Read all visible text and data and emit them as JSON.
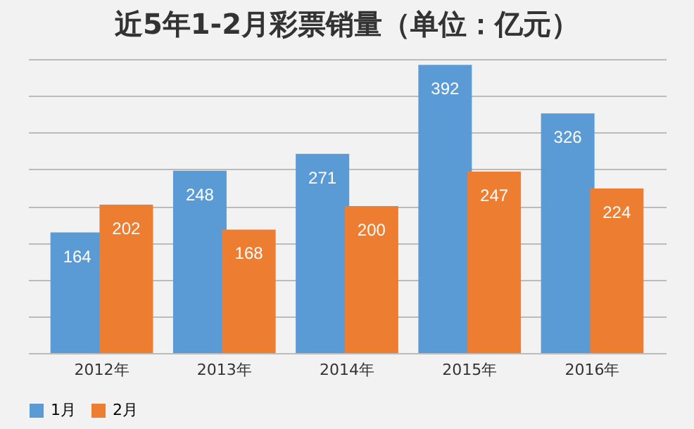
{
  "chart_data": {
    "type": "bar",
    "title": "近5年1-2月彩票销量（单位：亿元）",
    "categories": [
      "2012年",
      "2013年",
      "2014年",
      "2015年",
      "2016年"
    ],
    "series": [
      {
        "name": "1月",
        "color": "#5b9bd5",
        "values": [
          164,
          248,
          271,
          392,
          326
        ]
      },
      {
        "name": "2月",
        "color": "#ed7d31",
        "values": [
          202,
          168,
          200,
          247,
          224
        ]
      }
    ],
    "tick_labels": "x",
    "grid": "y",
    "legend": "bottom",
    "data_labels": true
  }
}
